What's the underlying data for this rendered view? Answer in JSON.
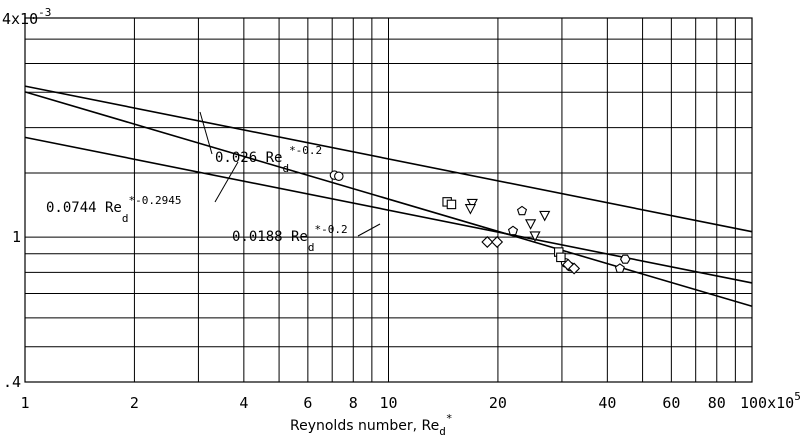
{
  "chart_data": {
    "type": "scatter",
    "x_scale": "log",
    "y_scale": "log",
    "xlim": [
      100000,
      10000000
    ],
    "ylim": [
      0.0004,
      0.004
    ],
    "grid": true,
    "xlabel": "Reynolds number, Re",
    "xlabel_sub": "d",
    "xlabel_sup": "*",
    "x_ticks": [
      {
        "value": 100000,
        "label": "1"
      },
      {
        "value": 200000,
        "label": "2"
      },
      {
        "value": 400000,
        "label": "4"
      },
      {
        "value": 600000,
        "label": "6"
      },
      {
        "value": 800000,
        "label": "8"
      },
      {
        "value": 1000000,
        "label": "10"
      },
      {
        "value": 2000000,
        "label": "20"
      },
      {
        "value": 4000000,
        "label": "40"
      },
      {
        "value": 6000000,
        "label": "60"
      },
      {
        "value": 8000000,
        "label": "80"
      },
      {
        "value": 10000000,
        "label": "100x10",
        "sup": "5"
      }
    ],
    "y_ticks": [
      {
        "value": 0.004,
        "label": "4x10",
        "sup": "-3"
      },
      {
        "value": 0.001,
        "label": "1"
      },
      {
        "value": 0.0004,
        "label": ".4"
      }
    ],
    "lines": [
      {
        "coef": 0.026,
        "exp": -0.2,
        "label_prefix": "0.026 Re",
        "label_sub": "d",
        "label_sup": "*-0.2"
      },
      {
        "coef": 0.0744,
        "exp": -0.2945,
        "label_prefix": "0.0744 Re",
        "label_sub": "d",
        "label_sup": "*-0.2945"
      },
      {
        "coef": 0.0188,
        "exp": -0.2,
        "label_prefix": "0.0188 Re",
        "label_sub": "d",
        "label_sup": "*-0.2"
      }
    ],
    "series": [
      {
        "marker": "circle",
        "points": [
          [
            710000,
            0.00148
          ],
          [
            730000,
            0.00147
          ],
          [
            3070000,
            0.00085
          ],
          [
            3160000,
            0.00083
          ]
        ]
      },
      {
        "marker": "square",
        "points": [
          [
            1450000,
            0.00125
          ],
          [
            1490000,
            0.00123
          ],
          [
            2940000,
            0.00091
          ],
          [
            2980000,
            0.00088
          ]
        ]
      },
      {
        "marker": "diamond",
        "points": [
          [
            1870000,
            0.00097
          ],
          [
            1990000,
            0.00097
          ],
          [
            3120000,
            0.00084
          ],
          [
            3240000,
            0.00082
          ]
        ]
      },
      {
        "marker": "triangle-down",
        "points": [
          [
            1700000,
            0.00124
          ],
          [
            1680000,
            0.0012
          ],
          [
            2460000,
            0.00109
          ],
          [
            2530000,
            0.00101
          ],
          [
            2690000,
            0.00115
          ]
        ]
      },
      {
        "marker": "pentagon",
        "points": [
          [
            2200000,
            0.00104
          ],
          [
            2330000,
            0.00118
          ],
          [
            4330000,
            0.00082
          ]
        ]
      },
      {
        "marker": "hexagon",
        "points": [
          [
            4480000,
            0.00087
          ]
        ]
      }
    ]
  }
}
